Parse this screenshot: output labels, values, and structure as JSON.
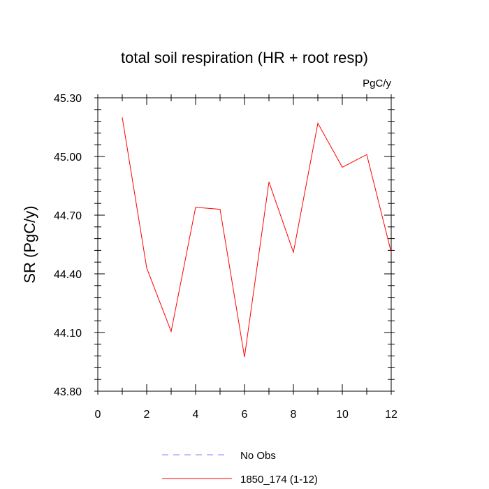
{
  "chart_data": {
    "type": "line",
    "title": "total soil respiration (HR + root resp)",
    "units": "PgC/y",
    "xlabel": "",
    "ylabel": "SR  (PgC/y)",
    "xlim": [
      0,
      12
    ],
    "ylim": [
      43.8,
      45.3
    ],
    "x_ticks": [
      0,
      2,
      4,
      6,
      8,
      10,
      12
    ],
    "x_tick_labels": [
      "0",
      "2",
      "4",
      "6",
      "8",
      "10",
      "12"
    ],
    "y_ticks": [
      43.8,
      44.1,
      44.4,
      44.7,
      45.0,
      45.3
    ],
    "y_tick_labels": [
      "43.80",
      "44.10",
      "44.40",
      "44.70",
      "45.00",
      "45.30"
    ],
    "grid": false,
    "legend_position": "bottom-center",
    "series": [
      {
        "name": "1850_174 (1-12)",
        "color": "#ff0000",
        "dash": "solid",
        "x": [
          1,
          2,
          3,
          4,
          5,
          6,
          7,
          8,
          9,
          10,
          11,
          12
        ],
        "values": [
          45.2,
          44.43,
          44.105,
          44.74,
          44.73,
          43.975,
          44.87,
          44.51,
          45.17,
          44.945,
          45.01,
          44.51
        ]
      }
    ],
    "legend": [
      {
        "label": "No Obs",
        "color": "#8080ff",
        "dash": "dashed"
      },
      {
        "label": "1850_174 (1-12)",
        "color": "#ff0000",
        "dash": "solid"
      }
    ]
  }
}
